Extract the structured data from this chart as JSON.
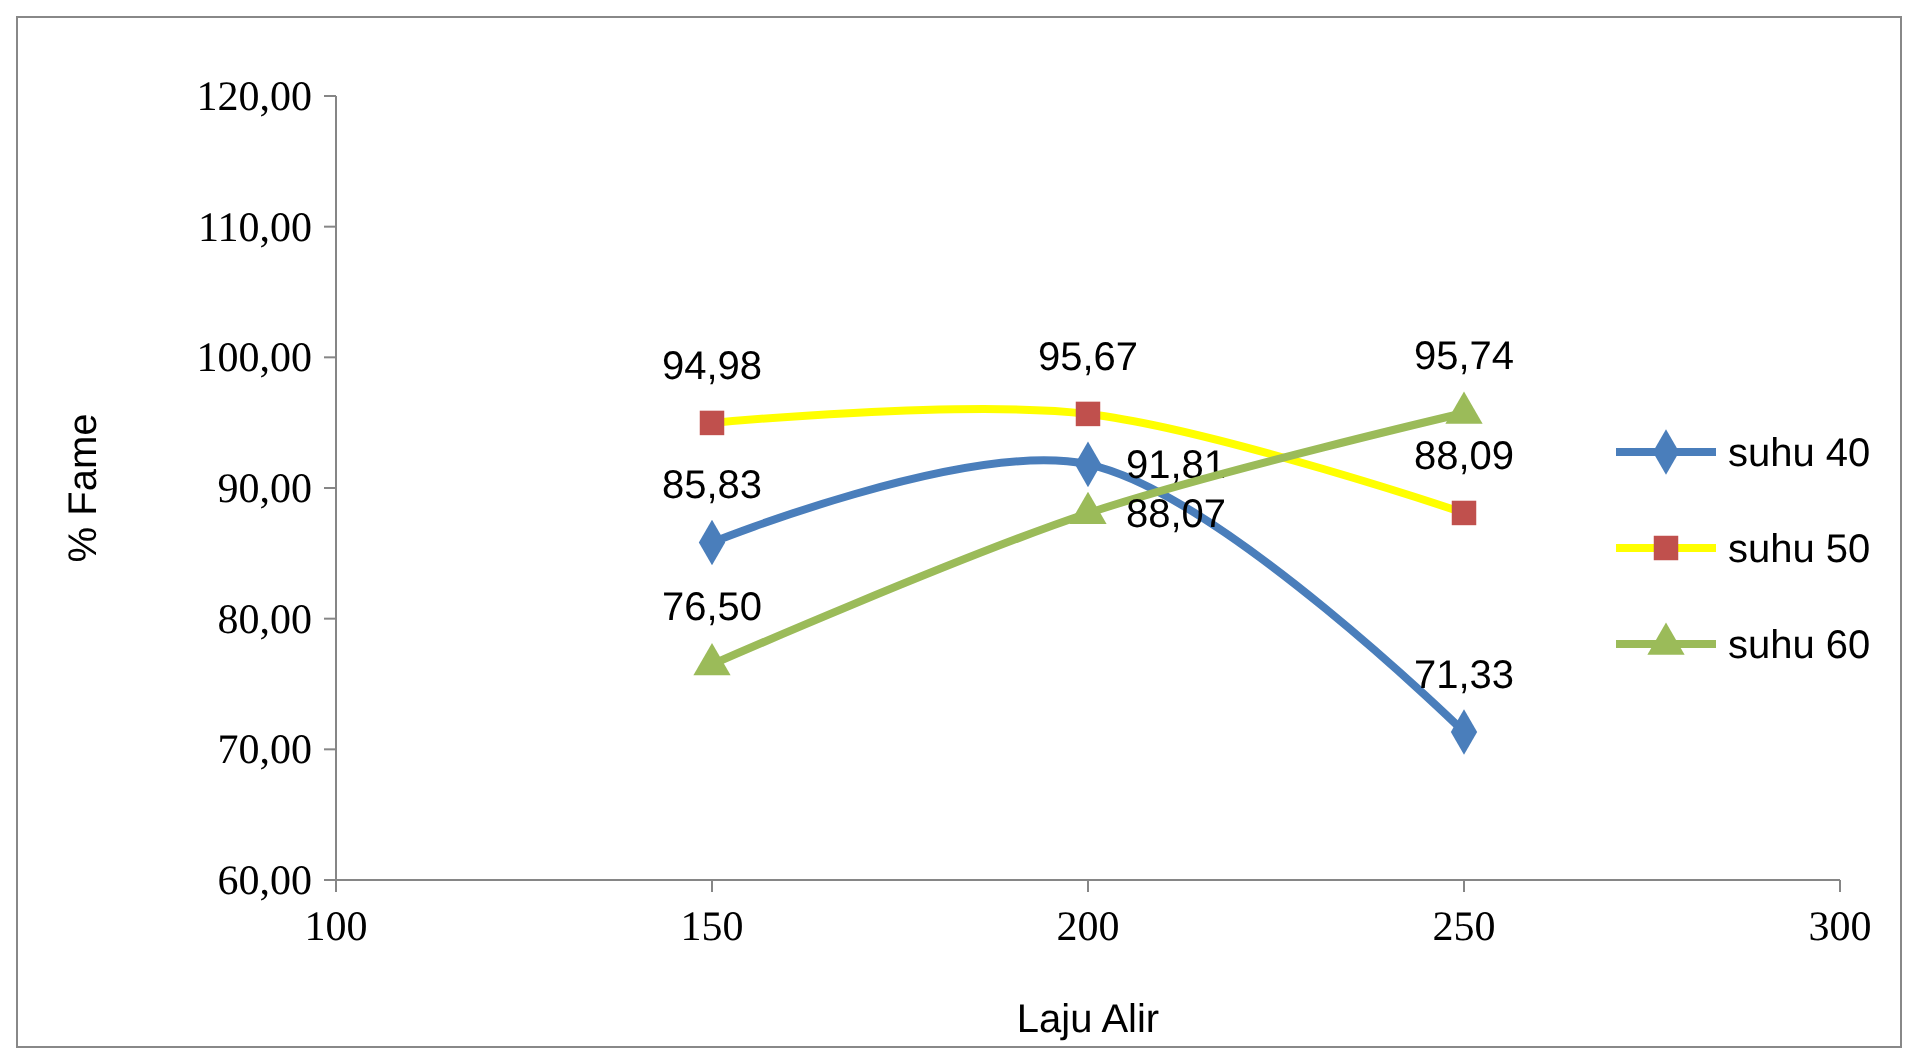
{
  "chart_data": {
    "type": "line",
    "xlabel": "Laju Alir",
    "ylabel": "% Fame",
    "x": [
      150,
      200,
      250
    ],
    "xlim": [
      100,
      300
    ],
    "xticks": [
      100,
      150,
      200,
      250,
      300
    ],
    "ylim": [
      60,
      120
    ],
    "yticks": [
      {
        "value": 60,
        "label": "60,00"
      },
      {
        "value": 70,
        "label": "70,00"
      },
      {
        "value": 80,
        "label": "80,00"
      },
      {
        "value": 90,
        "label": "90,00"
      },
      {
        "value": 100,
        "label": "100,00"
      },
      {
        "value": 110,
        "label": "110,00"
      },
      {
        "value": 120,
        "label": "120,00"
      }
    ],
    "legend": "right",
    "grid": false,
    "series": [
      {
        "name": "suhu 40",
        "color": "#4a7ebb",
        "marker": "diamond",
        "values": [
          85.83,
          91.81,
          71.33
        ],
        "value_labels": [
          "85,83",
          "91,81",
          "71,33"
        ]
      },
      {
        "name": "suhu 50",
        "color": "#ffff00",
        "colors": [
          "#c0504d",
          "#c0504d",
          "#c0504d"
        ],
        "marker": "square",
        "values": [
          94.98,
          95.67,
          88.09
        ],
        "value_labels": [
          "94,98",
          "95,67",
          "88,09"
        ]
      },
      {
        "name": "suhu 60",
        "color": "#9bbb59",
        "marker": "triangle",
        "values": [
          76.5,
          88.07,
          95.74
        ],
        "value_labels": [
          "76,50",
          "88,07",
          "95,74"
        ]
      }
    ]
  }
}
